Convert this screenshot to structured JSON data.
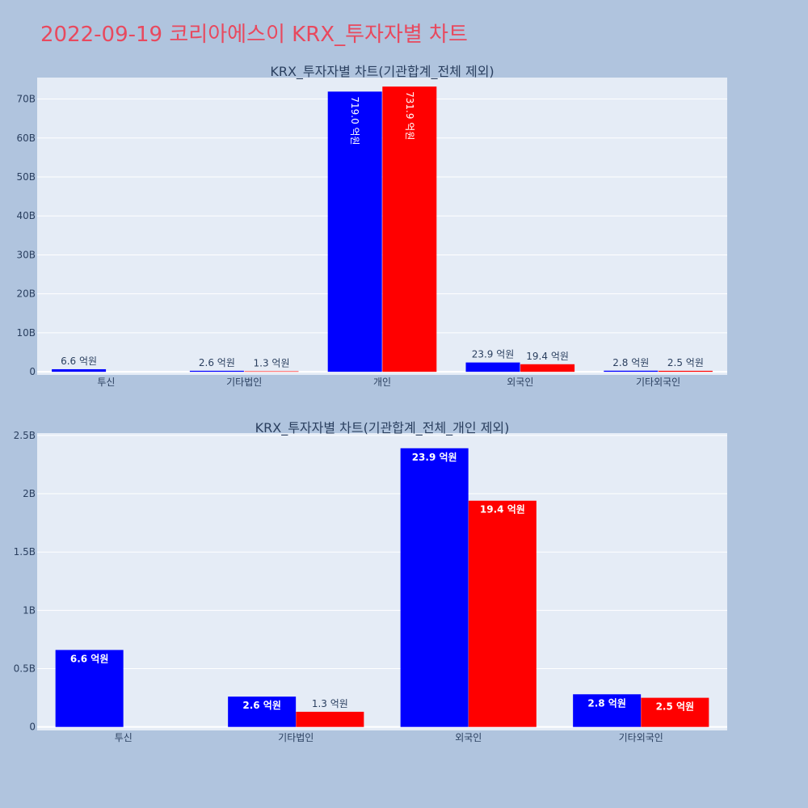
{
  "title": "2022-09-19 코리아에스이 KRX_투자자별 차트",
  "chart_data": [
    {
      "type": "bar",
      "title": "KRX_투자자별 차트(기관합계_전체 제외)",
      "categories": [
        "투신",
        "기타법인",
        "개인",
        "외국인",
        "기타외국인"
      ],
      "series": [
        {
          "color": "#0000ff",
          "values": [
            660000000,
            260000000,
            71900000000,
            2390000000,
            280000000
          ],
          "labels": [
            "6.6 억원",
            "2.6 억원",
            "719.0 억원",
            "23.9 억원",
            "2.8 억원"
          ]
        },
        {
          "color": "#ff0000",
          "values": [
            null,
            130000000,
            73190000000,
            1940000000,
            250000000
          ],
          "labels": [
            "",
            "1.3 억원",
            "731.9 억원",
            "19.4 억원",
            "2.5 억원"
          ]
        }
      ],
      "ylim": [
        -800000000,
        75500000000
      ],
      "yticks": [
        0,
        10000000000,
        20000000000,
        30000000000,
        40000000000,
        50000000000,
        60000000000,
        70000000000
      ],
      "yticklabels": [
        "0",
        "10B",
        "20B",
        "30B",
        "40B",
        "50B",
        "60B",
        "70B"
      ],
      "grid": true,
      "xlabel": "",
      "ylabel": ""
    },
    {
      "type": "bar",
      "title": "KRX_투자자별 차트(기관합계_전체_개인 제외)",
      "categories": [
        "투신",
        "기타법인",
        "외국인",
        "기타외국인"
      ],
      "series": [
        {
          "color": "#0000ff",
          "values": [
            660000000,
            260000000,
            2390000000,
            280000000
          ],
          "labels": [
            "6.6 억원",
            "2.6 억원",
            "23.9 억원",
            "2.8 억원"
          ]
        },
        {
          "color": "#ff0000",
          "values": [
            null,
            130000000,
            1940000000,
            250000000
          ],
          "labels": [
            "",
            "1.3 억원",
            "19.4 억원",
            "2.5 억원"
          ]
        }
      ],
      "ylim": [
        -30000000,
        2520000000
      ],
      "yticks": [
        0,
        500000000,
        1000000000,
        1500000000,
        2000000000,
        2500000000
      ],
      "yticklabels": [
        "0",
        "0.5B",
        "1B",
        "1.5B",
        "2B",
        "2.5B"
      ],
      "grid": true,
      "xlabel": "",
      "ylabel": ""
    }
  ]
}
